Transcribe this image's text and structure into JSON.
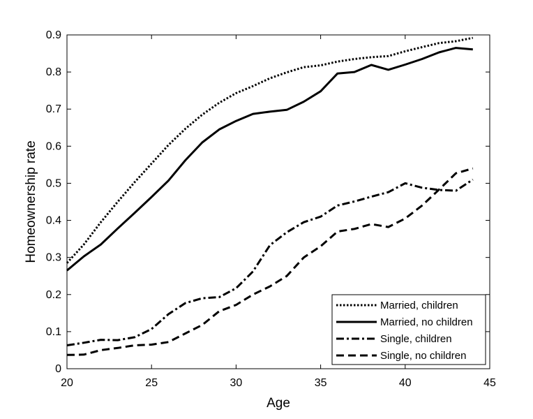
{
  "chart_data": {
    "type": "line",
    "title": "",
    "xlabel": "Age",
    "ylabel": "Homeownership rate",
    "xlim": [
      20,
      45
    ],
    "ylim": [
      0,
      0.9
    ],
    "xticks": [
      20,
      25,
      30,
      35,
      40,
      45
    ],
    "yticks": [
      0,
      0.1,
      0.2,
      0.3,
      0.4,
      0.5,
      0.6,
      0.7,
      0.8,
      0.9
    ],
    "grid": false,
    "legend_position": "bottom-right",
    "x": [
      20,
      21,
      22,
      23,
      24,
      25,
      26,
      27,
      28,
      29,
      30,
      31,
      32,
      33,
      34,
      35,
      36,
      37,
      38,
      39,
      40,
      41,
      42,
      43,
      44
    ],
    "series": [
      {
        "name": "Married, children",
        "style": "dotted",
        "values": [
          0.285,
          0.335,
          0.395,
          0.45,
          0.503,
          0.553,
          0.603,
          0.647,
          0.685,
          0.717,
          0.743,
          0.762,
          0.783,
          0.799,
          0.813,
          0.818,
          0.828,
          0.835,
          0.84,
          0.843,
          0.856,
          0.867,
          0.878,
          0.883,
          0.892
        ]
      },
      {
        "name": "Married, no children",
        "style": "solid",
        "values": [
          0.265,
          0.303,
          0.335,
          0.378,
          0.42,
          0.463,
          0.507,
          0.562,
          0.61,
          0.645,
          0.668,
          0.687,
          0.693,
          0.698,
          0.72,
          0.748,
          0.796,
          0.8,
          0.819,
          0.806,
          0.82,
          0.835,
          0.853,
          0.865,
          0.861
        ]
      },
      {
        "name": "Single, children",
        "style": "dashdot",
        "values": [
          0.063,
          0.07,
          0.078,
          0.077,
          0.085,
          0.107,
          0.147,
          0.177,
          0.19,
          0.193,
          0.217,
          0.262,
          0.333,
          0.368,
          0.395,
          0.41,
          0.44,
          0.451,
          0.464,
          0.476,
          0.5,
          0.488,
          0.482,
          0.48,
          0.51
        ]
      },
      {
        "name": "Single, no children",
        "style": "dashed",
        "values": [
          0.037,
          0.038,
          0.05,
          0.056,
          0.063,
          0.065,
          0.072,
          0.095,
          0.118,
          0.155,
          0.172,
          0.2,
          0.222,
          0.25,
          0.3,
          0.33,
          0.37,
          0.377,
          0.39,
          0.382,
          0.405,
          0.44,
          0.483,
          0.527,
          0.54
        ]
      }
    ]
  }
}
